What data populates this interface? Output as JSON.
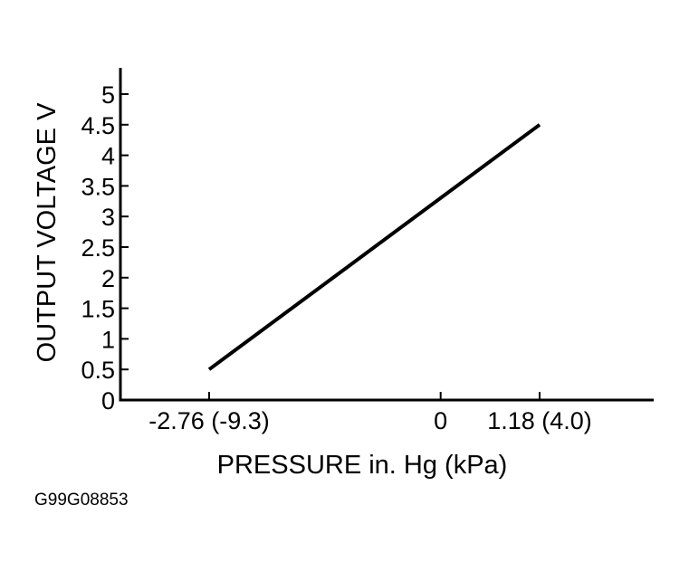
{
  "chart_data": {
    "type": "line",
    "title": "",
    "xlabel": "PRESSURE in. Hg (kPa)",
    "ylabel": "OUTPUT VOLTAGE V",
    "x_ticks": [
      {
        "value": -2.76,
        "label": "-2.76 (-9.3)"
      },
      {
        "value": 0,
        "label": "0"
      },
      {
        "value": 1.18,
        "label": "1.18 (4.0)"
      }
    ],
    "y_ticks": [
      0,
      0.5,
      1,
      1.5,
      2,
      2.5,
      3,
      3.5,
      4,
      4.5,
      5
    ],
    "y_tick_labels": [
      "0",
      "0.5",
      "1",
      "1.5",
      "2",
      "2.5",
      "3",
      "3.5",
      "4",
      "4.5",
      "5"
    ],
    "xlim": [
      -3.6,
      2.2
    ],
    "ylim": [
      0,
      5.45
    ],
    "grid": false,
    "series": [
      {
        "points": [
          {
            "x": -2.76,
            "y": 0.5
          },
          {
            "x": 1.18,
            "y": 4.5
          }
        ]
      }
    ]
  },
  "figure_id": "G99G08853",
  "colors": {
    "line": "#000000",
    "axis": "#000000",
    "background": "#ffffff"
  }
}
